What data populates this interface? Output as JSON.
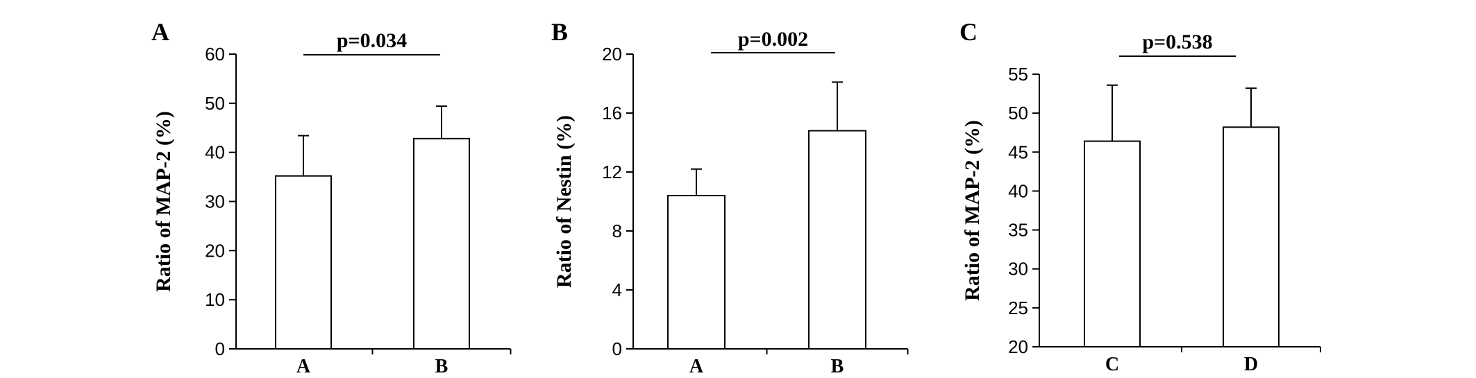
{
  "chart_data": [
    {
      "type": "bar",
      "panel": "A",
      "categories": [
        "A",
        "B"
      ],
      "values": [
        35.2,
        42.8
      ],
      "errors": [
        8.2,
        6.6
      ],
      "ylabel": "Ratio of MAP-2 (%)",
      "ylim": [
        0,
        60
      ],
      "yticks": [
        0,
        10,
        20,
        30,
        40,
        50,
        60
      ],
      "annotation": "p=0.034"
    },
    {
      "type": "bar",
      "panel": "B",
      "categories": [
        "A",
        "B"
      ],
      "values": [
        10.4,
        14.8
      ],
      "errors": [
        1.8,
        3.3
      ],
      "ylabel": "Ratio of Nestin (%)",
      "ylim": [
        0,
        20
      ],
      "yticks": [
        0,
        4,
        8,
        12,
        16,
        20
      ],
      "annotation": "p=0.002"
    },
    {
      "type": "bar",
      "panel": "C",
      "categories": [
        "C",
        "D"
      ],
      "values": [
        46.4,
        48.2
      ],
      "errors": [
        7.2,
        5.0
      ],
      "ylabel": "Ratio of MAP-2 (%)",
      "ylim": [
        20,
        55
      ],
      "yticks": [
        20,
        25,
        30,
        35,
        40,
        45,
        50,
        55
      ],
      "annotation": "p=0.538"
    }
  ]
}
